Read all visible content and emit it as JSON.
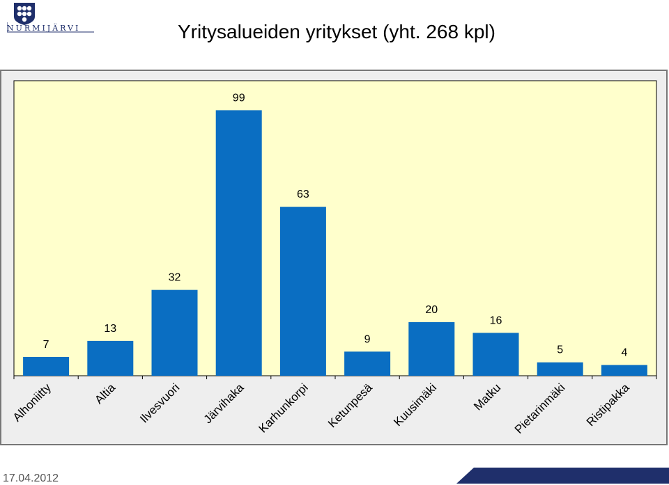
{
  "header": {
    "logo_text": "NURMIJÄRVI",
    "title": "Yritysalueiden yritykset (yht. 268 kpl)"
  },
  "footer": {
    "date": "17.04.2012"
  },
  "colors": {
    "bar": "#0a6ec2",
    "plot_background": "#ffffcc",
    "frame_background": "#eeeeee",
    "brand_blue": "#1f2f6b"
  },
  "chart_data": {
    "type": "bar",
    "categories": [
      "Alhoniitty",
      "Altia",
      "Ilvesvuori",
      "Järvihaka",
      "Karhunkorpi",
      "Ketunpesä",
      "Kuusimäki",
      "Matku",
      "Pietarinmäki",
      "Ristipakka"
    ],
    "values": [
      7,
      13,
      32,
      99,
      63,
      9,
      20,
      16,
      5,
      4
    ],
    "title": "Yritysalueiden yritykset (yht. 268 kpl)",
    "xlabel": "",
    "ylabel": "",
    "ylim": [
      0,
      110
    ],
    "grid": false,
    "legend": "none",
    "data_labels": true
  }
}
